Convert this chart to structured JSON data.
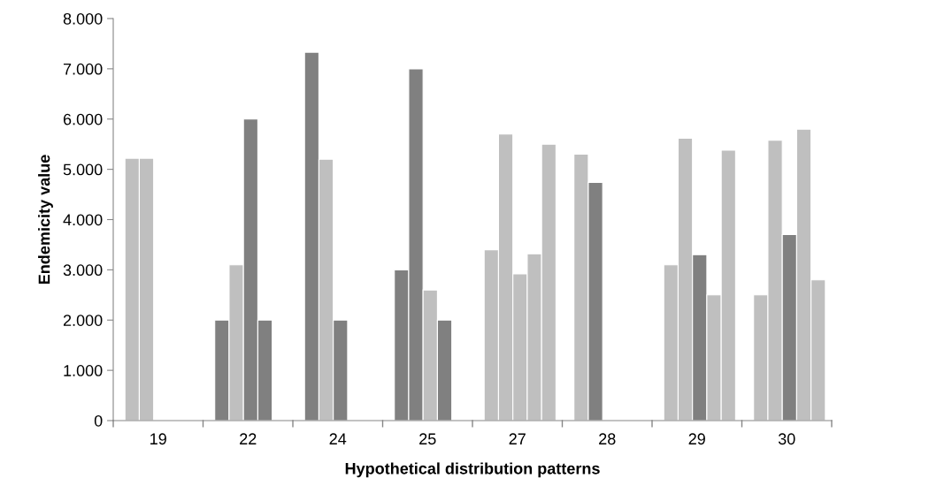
{
  "chart_data": {
    "type": "bar",
    "xlabel": "Hypothetical distribution patterns",
    "ylabel": "Endemicity value",
    "categories": [
      "19",
      "22",
      "24",
      "25",
      "27",
      "28",
      "29",
      "30"
    ],
    "series": [
      {
        "values": [
          5220,
          2000,
          7330,
          3000,
          3400,
          5300,
          3100,
          2500
        ],
        "colors": [
          "#bfbfbf",
          "#808080",
          "#808080",
          "#808080",
          "#bfbfbf",
          "#bfbfbf",
          "#bfbfbf",
          "#bfbfbf"
        ]
      },
      {
        "values": [
          5220,
          3100,
          5200,
          7000,
          5700,
          4740,
          5620,
          5580
        ],
        "colors": [
          "#bfbfbf",
          "#bfbfbf",
          "#bfbfbf",
          "#808080",
          "#bfbfbf",
          "#808080",
          "#bfbfbf",
          "#bfbfbf"
        ]
      },
      {
        "values": [
          null,
          6000,
          2000,
          2600,
          2920,
          null,
          3300,
          3700
        ],
        "colors": [
          "#bfbfbf",
          "#808080",
          "#808080",
          "#bfbfbf",
          "#bfbfbf",
          "#bfbfbf",
          "#808080",
          "#808080"
        ]
      },
      {
        "values": [
          null,
          2000,
          null,
          2000,
          3320,
          null,
          2500,
          5800
        ],
        "colors": [
          "#bfbfbf",
          "#808080",
          "#bfbfbf",
          "#808080",
          "#bfbfbf",
          "#bfbfbf",
          "#bfbfbf",
          "#bfbfbf"
        ]
      },
      {
        "values": [
          null,
          null,
          null,
          null,
          5500,
          null,
          5380,
          2800
        ],
        "colors": [
          "#bfbfbf",
          "#bfbfbf",
          "#bfbfbf",
          "#bfbfbf",
          "#bfbfbf",
          "#bfbfbf",
          "#bfbfbf",
          "#bfbfbf"
        ]
      }
    ],
    "ylim": [
      0,
      8000
    ],
    "yticks": [
      0,
      {
        "value": 1000,
        "label": "1.000"
      },
      {
        "value": 2000,
        "label": "2.000"
      },
      {
        "value": 3000,
        "label": "3.000"
      },
      {
        "value": 4000,
        "label": "4.000"
      },
      {
        "value": 5000,
        "label": "5.000"
      },
      {
        "value": 6000,
        "label": "6.000"
      },
      {
        "value": 7000,
        "label": "7.000"
      },
      {
        "value": 8000,
        "label": "8.000"
      }
    ],
    "grid": false
  }
}
